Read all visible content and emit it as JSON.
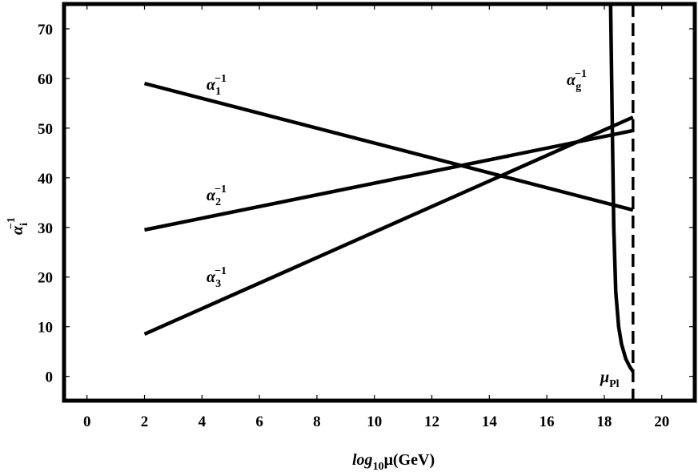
{
  "chart_data": {
    "type": "line",
    "xlim": [
      -0.8,
      21.15
    ],
    "ylim": [
      -4.9,
      75
    ],
    "xticks": [
      0,
      2,
      4,
      6,
      8,
      10,
      12,
      14,
      16,
      18,
      20
    ],
    "yticks": [
      0,
      10,
      20,
      30,
      40,
      50,
      60,
      70
    ],
    "xlabel": {
      "base": "log",
      "sub": "10",
      "rest": "μ(GeV)"
    },
    "ylabel": {
      "base": "α",
      "sub": "i",
      "sup": "−1"
    },
    "color": "#000000",
    "vline": 19,
    "vline_label": {
      "base": "μ",
      "sub": "Pl"
    },
    "series": [
      {
        "label": {
          "base": "α",
          "sub": "1",
          "sup": "−1"
        },
        "x": [
          2,
          19
        ],
        "values": [
          59,
          33.5
        ]
      },
      {
        "label": {
          "base": "α",
          "sub": "2",
          "sup": "−1"
        },
        "x": [
          2,
          19
        ],
        "values": [
          29.5,
          49.5
        ]
      },
      {
        "label": {
          "base": "α",
          "sub": "3",
          "sup": "−1"
        },
        "x": [
          2,
          19
        ],
        "values": [
          8.5,
          52.2
        ]
      },
      {
        "label": {
          "base": "α",
          "sub": "g",
          "sup": "−1"
        },
        "x": [
          18.22,
          18.28,
          18.33,
          18.4,
          18.5,
          18.6,
          18.75,
          18.9,
          19
        ],
        "values": [
          75,
          50,
          30,
          17,
          10,
          6.5,
          3.5,
          1.8,
          1
        ]
      }
    ]
  }
}
